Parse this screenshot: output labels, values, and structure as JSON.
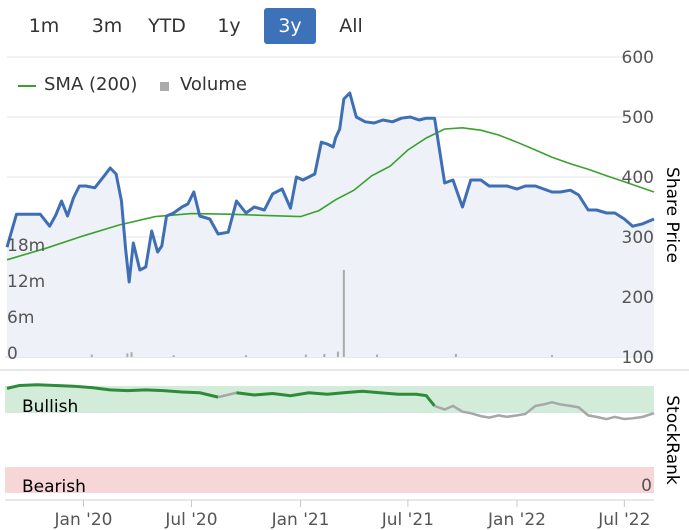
{
  "range_selector": {
    "buttons": [
      "1m",
      "3m",
      "YTD",
      "1y",
      "3y",
      "All"
    ],
    "active": "3y"
  },
  "legend": {
    "sma_label": "SMA (200)",
    "volume_label": "Volume"
  },
  "colors": {
    "price": "#3e6fb5",
    "sma": "#3aa12f",
    "volume": "#aaaaaa",
    "stockrank_green": "#2e8b3a",
    "stockrank_gray": "#a7a7a7",
    "bullish_band": "#d3ebd9",
    "bearish_band": "#f6d6d6",
    "active_button": "#3e72b8"
  },
  "chart_data": [
    {
      "type": "line",
      "title": "",
      "ylabel": "Share Price",
      "y_ticks": [
        100,
        200,
        300,
        400,
        500,
        600
      ],
      "ylim": [
        100,
        600
      ],
      "volume_ticks": [
        "0",
        "6m",
        "12m",
        "18m"
      ],
      "volume_ylim": [
        0,
        24
      ],
      "x_ticks": [
        "Jan '20",
        "Jul '20",
        "Jan '21",
        "Jul '21",
        "Jan '22",
        "Jul '22"
      ],
      "x_tick_dates": [
        "2020-01-01",
        "2020-07-01",
        "2021-01-01",
        "2021-07-01",
        "2022-01-01",
        "2022-07-01"
      ],
      "xlim": [
        "2019-08-25",
        "2022-08-20"
      ],
      "grid": true,
      "series": [
        {
          "name": "Share Price",
          "x": [
            "2019-08-25",
            "2019-09-10",
            "2019-10-01",
            "2019-10-20",
            "2019-11-05",
            "2019-11-15",
            "2019-11-25",
            "2019-12-05",
            "2019-12-15",
            "2019-12-25",
            "2020-01-05",
            "2020-01-20",
            "2020-02-05",
            "2020-02-15",
            "2020-02-25",
            "2020-03-05",
            "2020-03-12",
            "2020-03-18",
            "2020-03-25",
            "2020-04-05",
            "2020-04-15",
            "2020-04-25",
            "2020-05-05",
            "2020-05-12",
            "2020-05-20",
            "2020-06-01",
            "2020-06-15",
            "2020-06-25",
            "2020-07-05",
            "2020-07-15",
            "2020-08-01",
            "2020-08-15",
            "2020-09-01",
            "2020-09-15",
            "2020-10-01",
            "2020-10-15",
            "2020-11-01",
            "2020-11-15",
            "2020-12-01",
            "2020-12-15",
            "2020-12-25",
            "2021-01-05",
            "2021-01-15",
            "2021-01-25",
            "2021-02-05",
            "2021-02-15",
            "2021-02-25",
            "2021-03-01",
            "2021-03-08",
            "2021-03-15",
            "2021-03-25",
            "2021-04-05",
            "2021-04-20",
            "2021-05-05",
            "2021-05-20",
            "2021-06-05",
            "2021-06-20",
            "2021-07-05",
            "2021-07-20",
            "2021-08-01",
            "2021-08-15",
            "2021-09-01",
            "2021-09-15",
            "2021-10-01",
            "2021-10-15",
            "2021-11-01",
            "2021-11-15",
            "2021-12-01",
            "2021-12-15",
            "2022-01-01",
            "2022-01-15",
            "2022-02-01",
            "2022-02-15",
            "2022-03-01",
            "2022-03-15",
            "2022-04-01",
            "2022-04-15",
            "2022-05-01",
            "2022-05-15",
            "2022-06-01",
            "2022-06-15",
            "2022-07-01",
            "2022-07-15",
            "2022-08-01",
            "2022-08-20"
          ],
          "y": [
            283,
            338,
            338,
            338,
            318,
            336,
            360,
            335,
            365,
            385,
            385,
            382,
            402,
            415,
            405,
            360,
            280,
            225,
            290,
            245,
            250,
            310,
            275,
            285,
            335,
            340,
            350,
            355,
            375,
            335,
            330,
            305,
            308,
            360,
            340,
            350,
            345,
            372,
            380,
            348,
            400,
            395,
            400,
            405,
            458,
            455,
            450,
            465,
            480,
            530,
            540,
            500,
            492,
            490,
            495,
            492,
            498,
            500,
            495,
            498,
            498,
            390,
            395,
            350,
            395,
            395,
            385,
            385,
            385,
            380,
            385,
            385,
            380,
            375,
            375,
            378,
            370,
            345,
            345,
            340,
            340,
            330,
            318,
            322,
            330
          ]
        },
        {
          "name": "SMA (200)",
          "x": [
            "2019-08-25",
            "2019-11-01",
            "2020-01-01",
            "2020-03-01",
            "2020-05-01",
            "2020-07-01",
            "2020-09-01",
            "2020-11-01",
            "2021-01-01",
            "2021-02-01",
            "2021-03-01",
            "2021-04-01",
            "2021-05-01",
            "2021-06-01",
            "2021-07-01",
            "2021-08-01",
            "2021-09-01",
            "2021-10-01",
            "2021-11-01",
            "2021-12-01",
            "2022-01-01",
            "2022-02-01",
            "2022-03-01",
            "2022-04-01",
            "2022-05-01",
            "2022-06-01",
            "2022-07-01",
            "2022-08-20"
          ],
          "y": [
            262,
            282,
            302,
            320,
            334,
            339,
            338,
            336,
            334,
            344,
            362,
            378,
            402,
            418,
            445,
            465,
            480,
            482,
            478,
            470,
            458,
            445,
            433,
            422,
            413,
            402,
            392,
            375
          ]
        },
        {
          "name": "Volume",
          "x": [
            "2020-01-15",
            "2020-03-15",
            "2020-03-22",
            "2020-06-01",
            "2020-10-01",
            "2021-01-10",
            "2021-02-10",
            "2021-03-05",
            "2021-03-15",
            "2021-05-10",
            "2021-09-20",
            "2022-03-01"
          ],
          "y": [
            0.4,
            0.6,
            0.8,
            0.3,
            0.3,
            0.4,
            0.5,
            0.9,
            14.5,
            0.4,
            0.5,
            0.3
          ]
        }
      ]
    },
    {
      "type": "line",
      "title": "",
      "ylabel": "StockRank",
      "band_labels": [
        "Bullish",
        "Bearish"
      ],
      "y_ticks": [
        0
      ],
      "ylim": [
        0,
        100
      ],
      "x_ticks": [
        "Jan '20",
        "Jul '20",
        "Jan '21",
        "Jul '21",
        "Jan '22",
        "Jul '22"
      ],
      "series": [
        {
          "name": "StockRank",
          "x": [
            "2019-08-25",
            "2019-09-15",
            "2019-10-15",
            "2019-11-15",
            "2019-12-15",
            "2020-01-15",
            "2020-02-15",
            "2020-03-15",
            "2020-04-15",
            "2020-05-15",
            "2020-06-15",
            "2020-07-15",
            "2020-08-15",
            "2020-09-15",
            "2020-10-15",
            "2020-11-15",
            "2020-12-15",
            "2021-01-15",
            "2021-02-15",
            "2021-03-15",
            "2021-04-15",
            "2021-05-15",
            "2021-06-15",
            "2021-07-15",
            "2021-08-01",
            "2021-08-15",
            "2021-09-01",
            "2021-09-15",
            "2021-10-01",
            "2021-10-15",
            "2021-11-01",
            "2021-11-15",
            "2021-12-01",
            "2021-12-15",
            "2022-01-01",
            "2022-01-15",
            "2022-02-01",
            "2022-02-15",
            "2022-03-01",
            "2022-03-15",
            "2022-04-01",
            "2022-04-15",
            "2022-05-01",
            "2022-05-15",
            "2022-06-01",
            "2022-06-15",
            "2022-07-01",
            "2022-07-15",
            "2022-08-01",
            "2022-08-20"
          ],
          "y": [
            94,
            98,
            99,
            98,
            97,
            95,
            92,
            91,
            92,
            91,
            89,
            88,
            82,
            88,
            85,
            87,
            84,
            88,
            86,
            88,
            90,
            88,
            86,
            86,
            84,
            70,
            65,
            70,
            62,
            60,
            56,
            54,
            57,
            55,
            57,
            59,
            70,
            72,
            75,
            72,
            70,
            68,
            57,
            55,
            52,
            55,
            52,
            53,
            55,
            60
          ],
          "threshold": 84,
          "colors": {
            "above": "#2e8b3a",
            "below": "#a7a7a7"
          }
        }
      ]
    }
  ]
}
